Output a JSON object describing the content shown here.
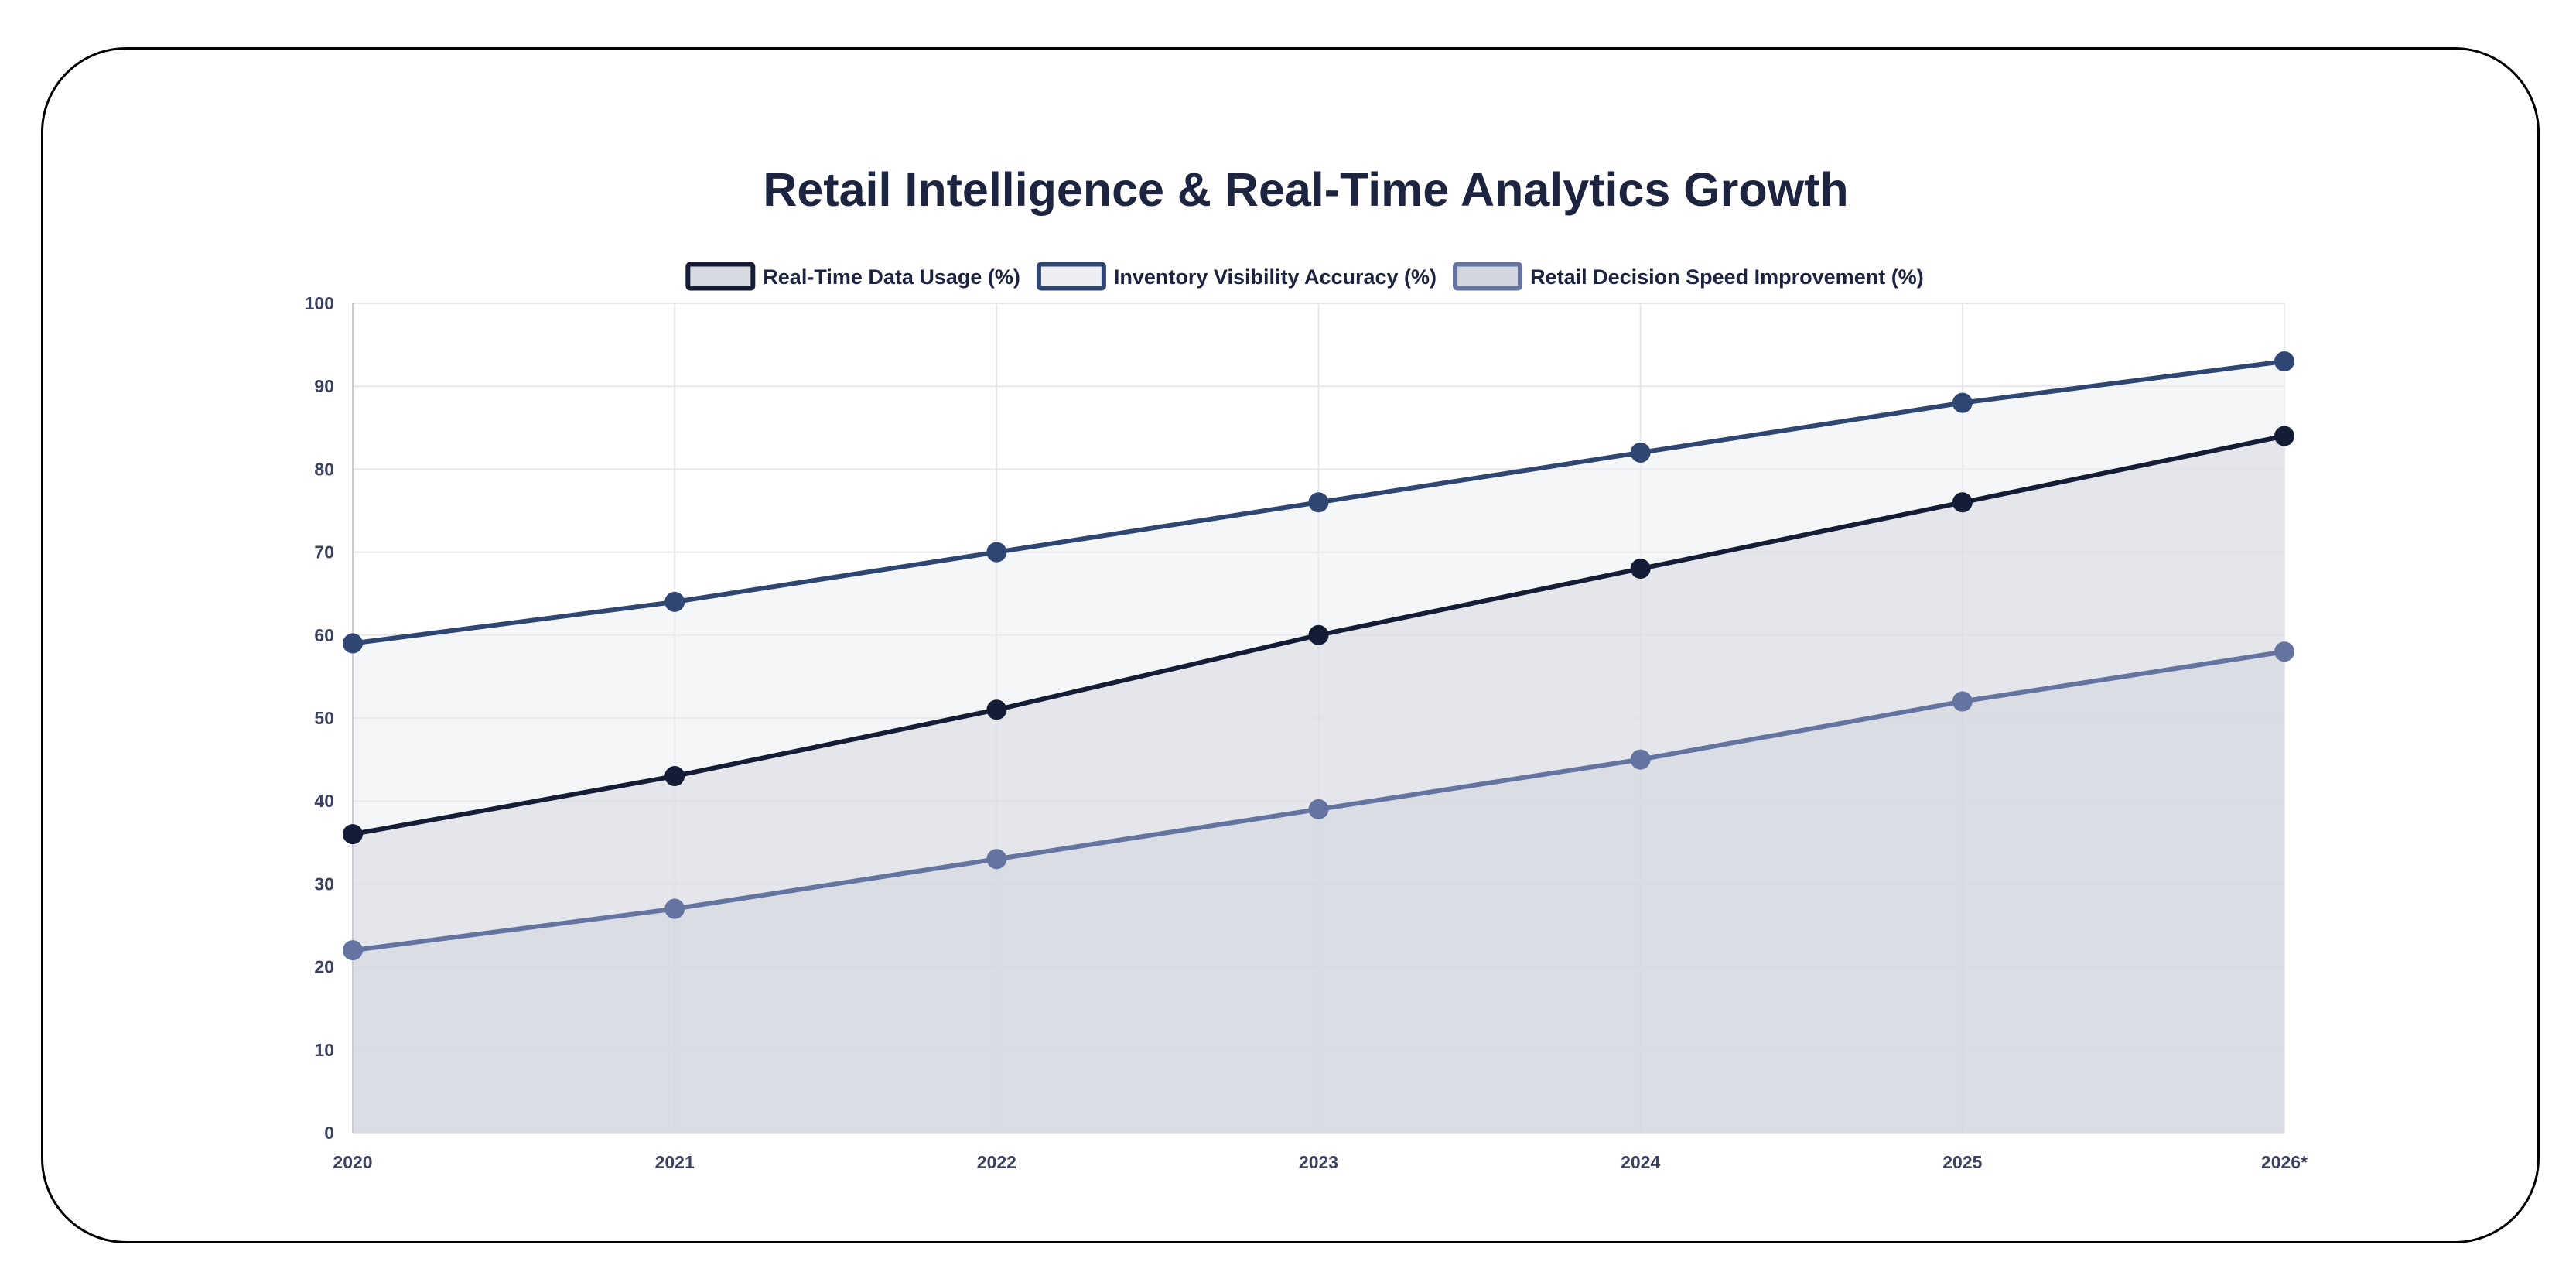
{
  "chart_data": {
    "type": "area",
    "title": "Retail Intelligence & Real-Time Analytics Growth",
    "xlabel": "",
    "ylabel": "",
    "categories": [
      "2020",
      "2021",
      "2022",
      "2023",
      "2024",
      "2025",
      "2026*"
    ],
    "ylim": [
      0,
      100
    ],
    "yticks": [
      0,
      10,
      20,
      30,
      40,
      50,
      60,
      70,
      80,
      90,
      100
    ],
    "grid": true,
    "legend_position": "top",
    "series": [
      {
        "name": "Real-Time Data Usage (%)",
        "values": [
          36,
          43,
          51,
          60,
          68,
          76,
          84
        ],
        "color": "#151d36",
        "fill": "#d6d9e0"
      },
      {
        "name": "Inventory Visibility Accuracy (%)",
        "values": [
          59,
          64,
          70,
          76,
          82,
          88,
          93
        ],
        "color": "#2f4673",
        "fill": "#eceef3"
      },
      {
        "name": "Retail Decision Speed Improvement (%)",
        "values": [
          22,
          27,
          33,
          39,
          45,
          52,
          58
        ],
        "color": "#6473a0",
        "fill": "#d2d5de"
      }
    ],
    "colors": {
      "text": "#1c2440",
      "tick": "#3a4260",
      "grid": "#e6e7eb",
      "axis": "#c9ccd4"
    }
  }
}
